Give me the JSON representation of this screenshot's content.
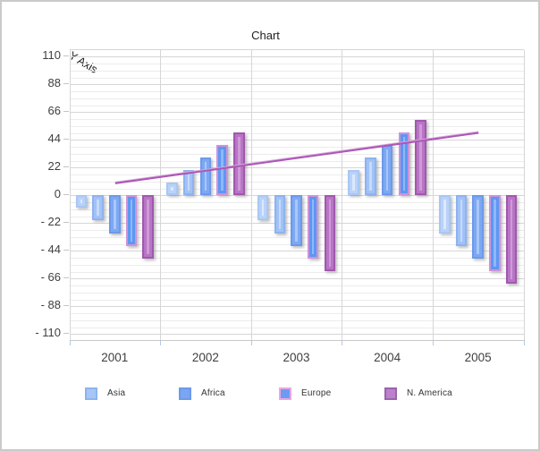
{
  "chart_data": {
    "type": "bar",
    "title": "Chart",
    "categories": [
      "2001",
      "2002",
      "2003",
      "2004",
      "2005"
    ],
    "y_axis": {
      "title": "Y Axis",
      "min": -115.5,
      "max": 115.5,
      "major_unit": 22,
      "minor_unit": 5.5,
      "tick_values": [
        110,
        88,
        66,
        44,
        22,
        0,
        -22,
        -44,
        -66,
        -88,
        -110
      ],
      "tick_labels": [
        "110",
        "88",
        "66",
        "44",
        "22",
        "0",
        "- 22",
        "- 44",
        "- 66",
        "- 88",
        "- 110"
      ]
    },
    "grid": {
      "horizontal_major": true,
      "horizontal_minor": true,
      "vertical_major": true
    },
    "series": [
      {
        "name": "",
        "type": "bar",
        "values": [
          -10,
          10,
          -20,
          20,
          -30
        ],
        "fill": "#b9d2f9",
        "stroke": "#a9c7f4",
        "highlight": "#dce8fd",
        "in_legend": false
      },
      {
        "name": "Asia",
        "type": "bar",
        "values": [
          -20,
          20,
          -30,
          30,
          -40
        ],
        "fill": "#a2c2f7",
        "stroke": "#8db3f0",
        "highlight": "#c6dafb",
        "in_legend": true
      },
      {
        "name": "Africa",
        "type": "bar",
        "values": [
          -30,
          30,
          -40,
          40,
          -50
        ],
        "fill": "#7ca8f4",
        "stroke": "#6d99e9",
        "highlight": "#a9c7f9",
        "in_legend": true
      },
      {
        "name": "Europe",
        "type": "bar",
        "values": [
          -40,
          40,
          -50,
          50,
          -60
        ],
        "fill": "#5d97f4",
        "stroke": "#cf92d8",
        "highlight": "#8db9f8",
        "in_legend": true
      },
      {
        "name": "N. America",
        "type": "bar",
        "values": [
          -50,
          50,
          -60,
          60,
          -70
        ],
        "fill": "#b875c5",
        "stroke": "#a158ad",
        "highlight": "#cf9bd7",
        "in_legend": true
      },
      {
        "name": "",
        "type": "line",
        "values": [
          10,
          20,
          30,
          40,
          50
        ],
        "color": "#ab58b5",
        "highlight": "#d9a8dd",
        "in_legend": false
      }
    ],
    "legend": {
      "position": "bottom",
      "items": [
        {
          "label": "Asia",
          "fill": "#a6c6f5",
          "border": "#8db3f0"
        },
        {
          "label": "Africa",
          "fill": "#79a5f2",
          "border": "#6d99e9"
        },
        {
          "label": "Europe",
          "fill": "#6b9cf2",
          "border": "#eba6e2"
        },
        {
          "label": "N. America",
          "fill": "#bb82cb",
          "border": "#9a63ad"
        }
      ]
    }
  }
}
